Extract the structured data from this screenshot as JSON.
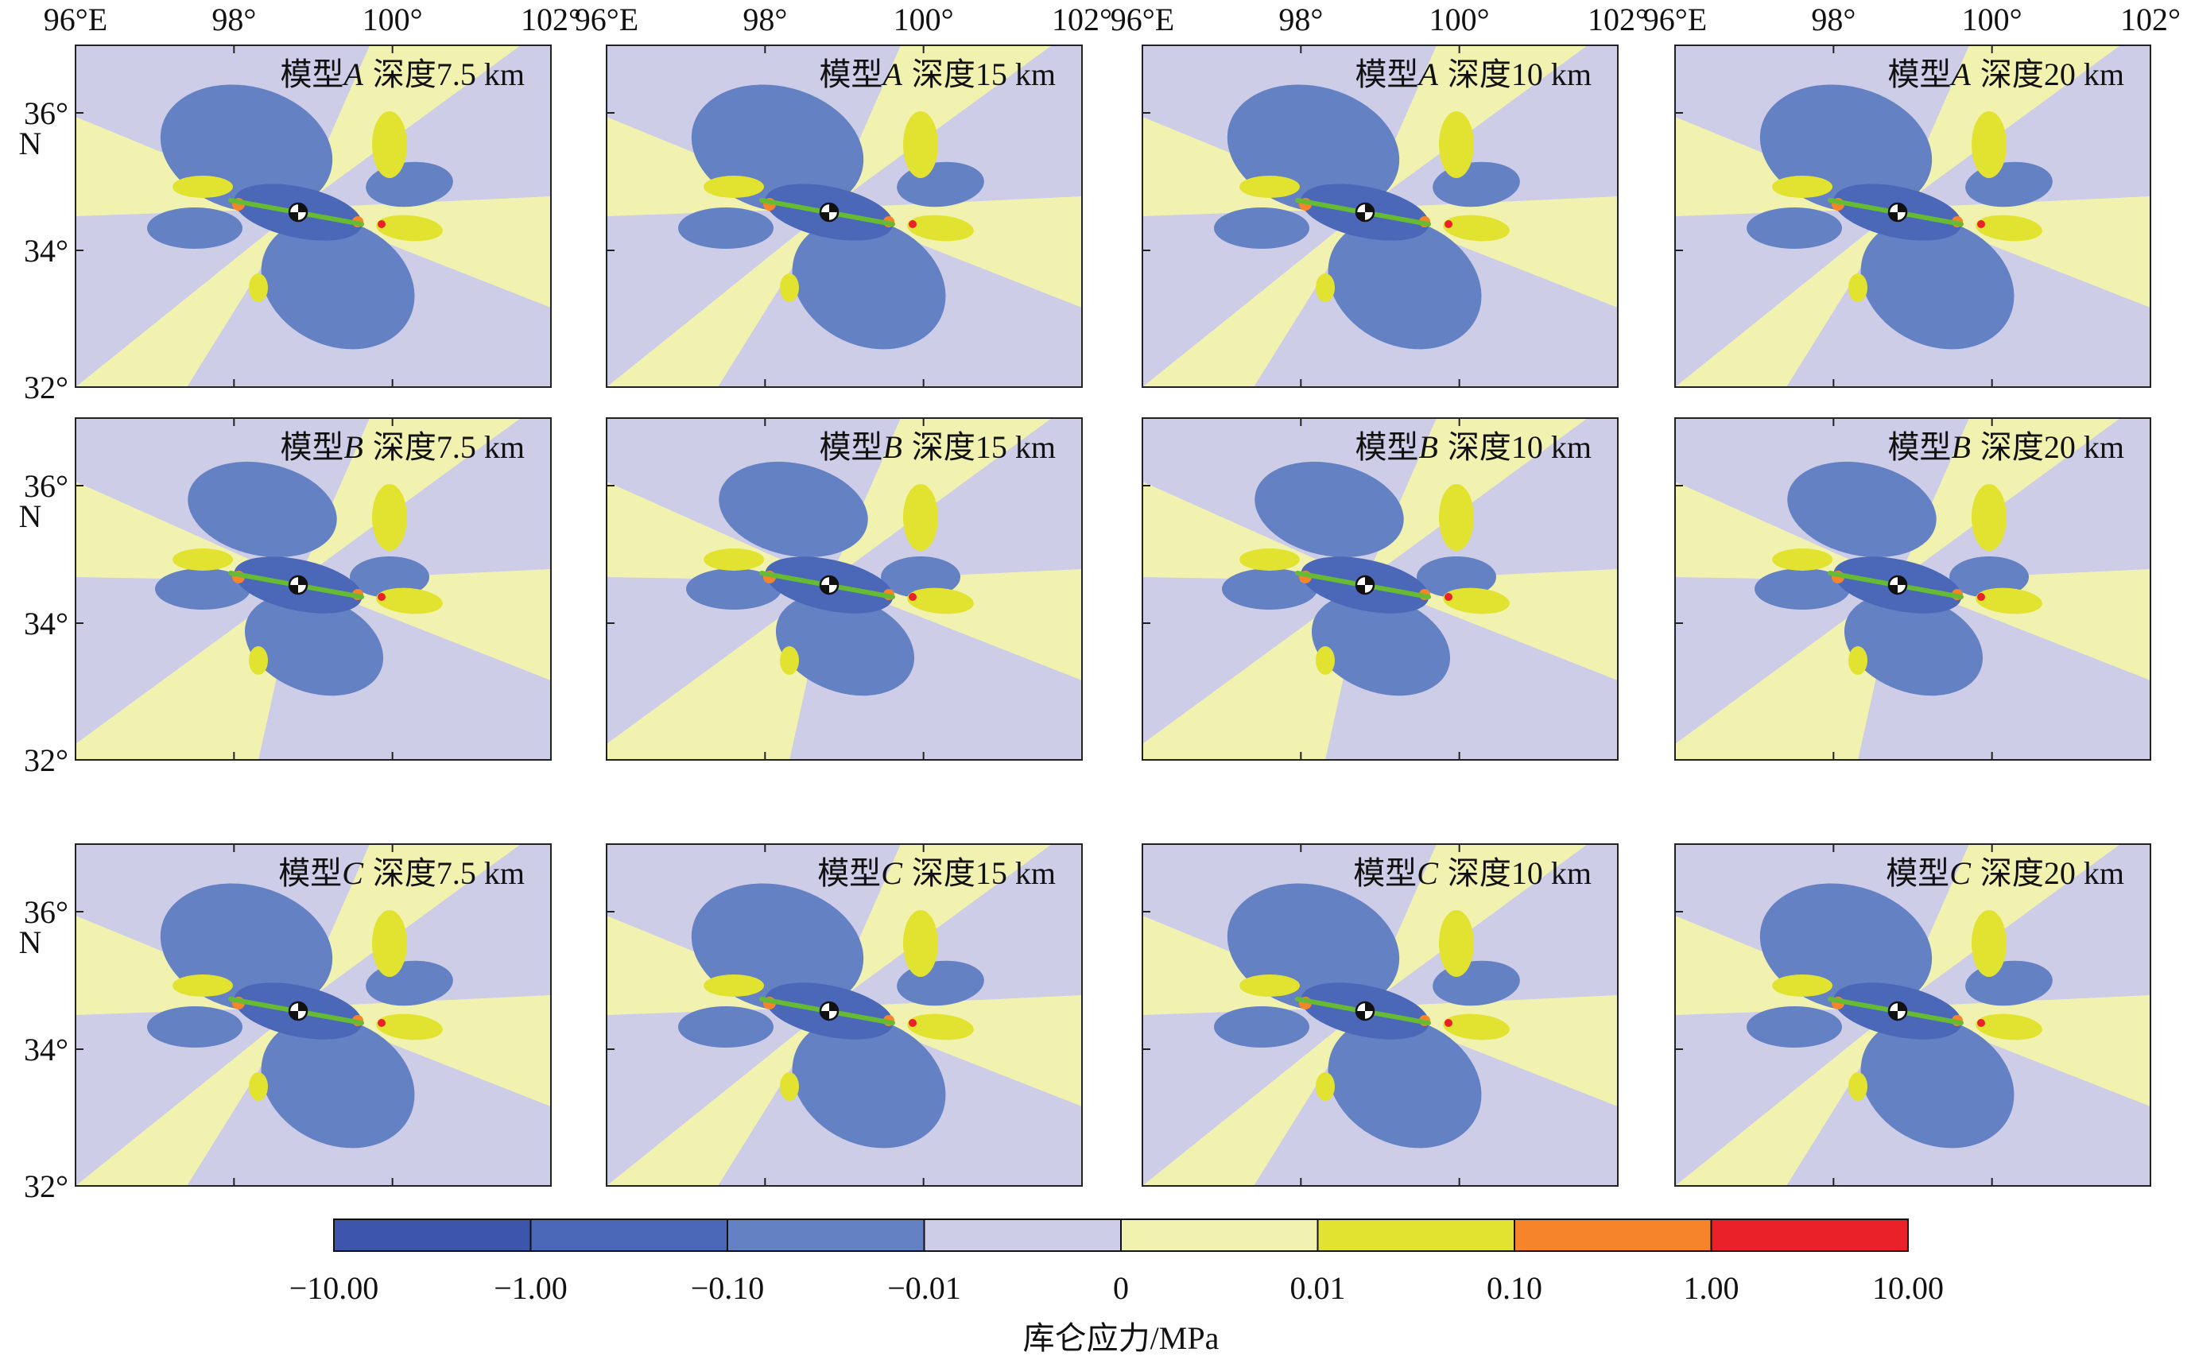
{
  "figure": {
    "colors": {
      "neg_10": "#3d55aa",
      "neg_1": "#4a67b8",
      "neg_01": "#6481c4",
      "neg_001": "#cdcde8",
      "pos_001": "#f2f2b0",
      "pos_01": "#e2e231",
      "pos_1": "#f5842a",
      "pos_10": "#ea2129",
      "fault": "#66bb33",
      "frame": "#222222"
    },
    "x_ticks": [
      "96°E",
      "98°",
      "100°",
      "102°"
    ],
    "y_ticks": [
      {
        "label": "36°",
        "sub": "N"
      },
      {
        "label": "34°",
        "sub": ""
      },
      {
        "label": "32°",
        "sub": ""
      }
    ],
    "panels": [
      {
        "model": "模型",
        "letter": "A",
        "depth": "深度7.5 km"
      },
      {
        "model": "模型",
        "letter": "A",
        "depth": "深度15 km"
      },
      {
        "model": "模型",
        "letter": "A",
        "depth": "深度10 km"
      },
      {
        "model": "模型",
        "letter": "A",
        "depth": "深度20 km"
      },
      {
        "model": "模型",
        "letter": "B",
        "depth": "深度7.5 km"
      },
      {
        "model": "模型",
        "letter": "B",
        "depth": "深度15 km"
      },
      {
        "model": "模型",
        "letter": "B",
        "depth": "深度10 km"
      },
      {
        "model": "模型",
        "letter": "B",
        "depth": "深度20 km"
      },
      {
        "model": "模型",
        "letter": "C",
        "depth": "深度7.5 km"
      },
      {
        "model": "模型",
        "letter": "C",
        "depth": "深度15 km"
      },
      {
        "model": "模型",
        "letter": "C",
        "depth": "深度10 km"
      },
      {
        "model": "模型",
        "letter": "C",
        "depth": "深度20 km"
      }
    ],
    "colorbar": {
      "labels": [
        "−10.00",
        "−1.00",
        "−0.10",
        "−0.01",
        "0",
        "0.01",
        "0.10",
        "1.00",
        "10.00"
      ],
      "title": "库仑应力/MPa"
    }
  }
}
